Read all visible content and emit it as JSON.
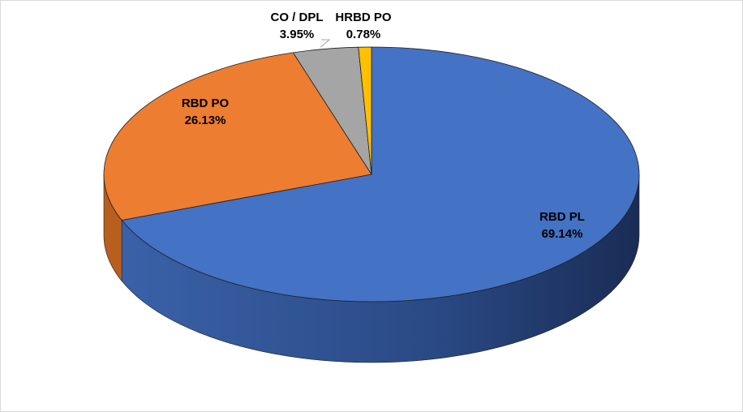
{
  "chart_data": {
    "type": "pie",
    "style": "3d",
    "title": "",
    "slices": [
      {
        "name": "RBD PL",
        "value": 69.14,
        "label": "69.14%",
        "color": "#4472C4",
        "side_color": "#2F5597"
      },
      {
        "name": "RBD PO",
        "value": 26.13,
        "label": "26.13%",
        "color": "#ED7D31",
        "side_color": "#B85E1F"
      },
      {
        "name": "CO / DPL",
        "value": 3.95,
        "label": "3.95%",
        "color": "#A5A5A5",
        "side_color": "#7F7F7F"
      },
      {
        "name": "HRBD PO",
        "value": 0.78,
        "label": "0.78%",
        "color": "#FFC000",
        "side_color": "#BF9000"
      }
    ],
    "legend": "none",
    "start": "top",
    "direction": "clockwise"
  }
}
